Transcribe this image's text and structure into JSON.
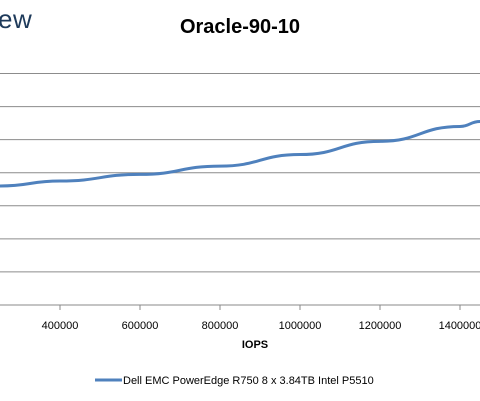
{
  "watermark": {
    "text": "ew"
  },
  "chart_data": {
    "type": "line",
    "title": "Oracle-90-10",
    "xlabel": "IOPS",
    "ylabel": "",
    "xlim": [
      250000,
      1450000
    ],
    "ylim": [
      0,
      7.5
    ],
    "x_ticks": [
      400000,
      600000,
      800000,
      1000000,
      1200000,
      1400000
    ],
    "y_gridlines": [
      0,
      1,
      2,
      3,
      4,
      5,
      6,
      7
    ],
    "grid": true,
    "legend_position": "bottom",
    "series": [
      {
        "name": "Dell EMC PowerEdge R750 8 x 3.84TB Intel P5510",
        "color": "#4f81bd",
        "x": [
          250000,
          400000,
          600000,
          800000,
          1000000,
          1200000,
          1400000,
          1450000
        ],
        "y": [
          3.6,
          3.75,
          3.95,
          4.2,
          4.55,
          4.95,
          5.4,
          5.55
        ]
      }
    ]
  }
}
